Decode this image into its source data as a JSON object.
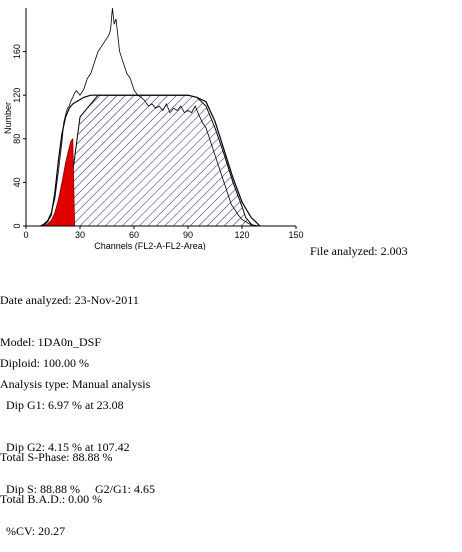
{
  "chart_data": {
    "type": "histogram",
    "xlabel": "Channels (FL2-A-FL2-Area)",
    "ylabel": "Number",
    "xlim": [
      0,
      150
    ],
    "ylim": [
      0,
      200
    ],
    "xticks": [
      0,
      30,
      60,
      90,
      120,
      150
    ],
    "yticks": [
      0,
      40,
      80,
      120,
      160
    ],
    "grid": false,
    "histogram": {
      "x": [
        8,
        10,
        12,
        14,
        16,
        18,
        20,
        21,
        22,
        23,
        24,
        25,
        26,
        27,
        28,
        30,
        32,
        34,
        36,
        38,
        40,
        42,
        44,
        46,
        47,
        48,
        49,
        50,
        51,
        52,
        54,
        56,
        58,
        60,
        62,
        64,
        66,
        68,
        70,
        72,
        74,
        76,
        78,
        80,
        82,
        84,
        86,
        88,
        90,
        92,
        94,
        96,
        98,
        100,
        102,
        104,
        106,
        108,
        110,
        112,
        114,
        116,
        118,
        120,
        122,
        124,
        126,
        128,
        130
      ],
      "y": [
        0,
        2,
        5,
        12,
        25,
        50,
        78,
        95,
        102,
        108,
        110,
        115,
        118,
        122,
        124,
        120,
        125,
        135,
        140,
        150,
        160,
        165,
        170,
        175,
        180,
        200,
        185,
        190,
        175,
        160,
        150,
        140,
        135,
        125,
        120,
        118,
        115,
        110,
        112,
        108,
        110,
        106,
        112,
        104,
        108,
        106,
        110,
        104,
        106,
        104,
        110,
        102,
        95,
        90,
        80,
        70,
        60,
        50,
        40,
        30,
        20,
        15,
        10,
        6,
        4,
        2,
        1,
        0.5,
        0
      ]
    },
    "fit": {
      "x": [
        8,
        10,
        12,
        14,
        16,
        18,
        20,
        22,
        24,
        26,
        28,
        30,
        32,
        34,
        36,
        38,
        40,
        45,
        50,
        60,
        70,
        80,
        90,
        95,
        100,
        105,
        110,
        115,
        120,
        125,
        130
      ],
      "y": [
        0,
        1,
        4,
        10,
        30,
        60,
        85,
        100,
        108,
        112,
        114,
        116,
        118,
        119,
        120,
        120,
        120,
        120,
        120,
        120,
        120,
        120,
        120,
        118,
        114,
        96,
        70,
        44,
        22,
        8,
        0
      ]
    },
    "s_phase": {
      "x": [
        22,
        30,
        40,
        50,
        60,
        70,
        80,
        90,
        95,
        100,
        105,
        110,
        115,
        120,
        122,
        126
      ],
      "y": [
        0,
        100,
        120,
        120,
        120,
        120,
        120,
        120,
        118,
        110,
        90,
        66,
        40,
        18,
        8,
        0
      ]
    },
    "g1_peak": {
      "mean": 23.08,
      "x": [
        10,
        12,
        14,
        16,
        18,
        20,
        22,
        24,
        25,
        26,
        27
      ],
      "y": [
        0,
        2,
        5,
        12,
        24,
        40,
        58,
        72,
        78,
        80,
        0
      ]
    }
  },
  "file_analyzed": "File analyzed: 2.003",
  "report": {
    "date": "Date analyzed: 23-Nov-2011",
    "model": "Model: 1DA0n_DSF",
    "analysis_type": "Analysis type: Manual analysis",
    "diploid": "Diploid: 100.00 %",
    "dip_g1": "  Dip G1: 6.97 % at 23.08",
    "dip_g2": "  Dip G2: 4.15 % at 107.42",
    "dip_s": "  Dip S: 88.88 %     G2/G1: 4.65",
    "cv": "  %CV: 20.27",
    "total_s": "Total S-Phase: 88.88 %",
    "total_bad": "Total B.A.D.: 0.00 %"
  },
  "colors": {
    "g1_fill": "#e00000",
    "hatch": "#1a1a80",
    "line": "#000000"
  }
}
